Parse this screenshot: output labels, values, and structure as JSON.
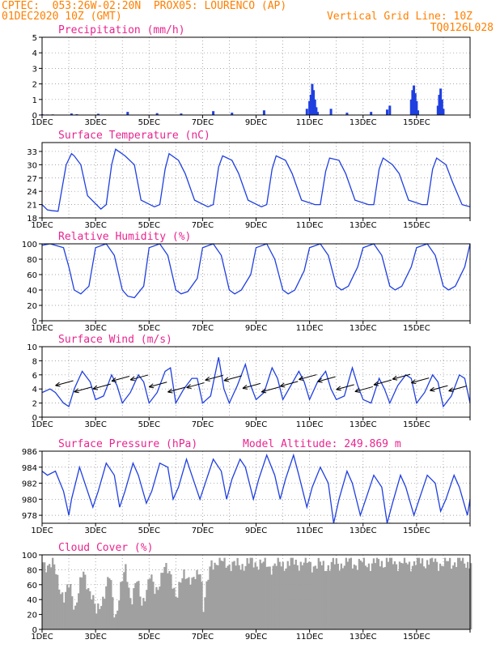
{
  "header": {
    "line1_left": "CPTEC:  053:26W-02:20N  PROX05: LOURENCO (AP)",
    "line2_left": "01DEC2020 10Z (GMT)",
    "line2_right": "Vertical Grid Line: 10Z",
    "line3_right": "TQ0126L028"
  },
  "colors": {
    "header": "#ff7f00",
    "title": "#e8248f",
    "series": "#1f3fe0",
    "cloud": "#a0a0a0"
  },
  "chart_data": [
    {
      "id": "precip",
      "type": "bar",
      "title": "Precipitation (mm/h)",
      "ylim": [
        0,
        5
      ],
      "yticks": [
        0,
        1,
        2,
        3,
        4,
        5
      ],
      "x_ticks": [
        "1DEC",
        "3DEC",
        "5DEC",
        "7DEC",
        "9DEC",
        "11DEC",
        "13DEC",
        "15DEC"
      ],
      "x": [
        0.0,
        0.2,
        0.4,
        1.1,
        1.3,
        2.1,
        3.2,
        4.3,
        5.2,
        6.4,
        7.1,
        8.3,
        9.9,
        10.0,
        10.05,
        10.1,
        10.15,
        10.2,
        10.25,
        10.3,
        10.8,
        11.4,
        12.3,
        12.9,
        13.0,
        13.8,
        13.85,
        13.9,
        13.95,
        14.0,
        14.05,
        14.8,
        14.85,
        14.9,
        14.95,
        15.0
      ],
      "values": [
        0.05,
        0.03,
        0.04,
        0.1,
        0.05,
        0.08,
        0.2,
        0.12,
        0.1,
        0.25,
        0.15,
        0.3,
        0.4,
        0.9,
        1.3,
        2.0,
        1.6,
        1.0,
        0.5,
        0.2,
        0.4,
        0.15,
        0.2,
        0.35,
        0.6,
        1.0,
        1.6,
        1.9,
        1.4,
        0.9,
        0.3,
        0.6,
        1.3,
        1.7,
        1.0,
        0.4
      ]
    },
    {
      "id": "temp",
      "type": "line",
      "title": "Surface Temperature (nC)",
      "ylim": [
        18,
        35
      ],
      "yticks": [
        18,
        21,
        24,
        27,
        30,
        33
      ],
      "x_ticks": [
        "1DEC",
        "3DEC",
        "5DEC",
        "7DEC",
        "9DEC",
        "11DEC",
        "13DEC",
        "15DEC"
      ],
      "x": [
        0,
        0.2,
        0.4,
        0.6,
        0.7,
        0.9,
        1.1,
        1.2,
        1.45,
        1.7,
        2.2,
        2.4,
        2.6,
        2.75,
        3.1,
        3.45,
        3.7,
        4.2,
        4.4,
        4.6,
        4.75,
        5.1,
        5.35,
        5.7,
        6.2,
        6.4,
        6.6,
        6.75,
        7.1,
        7.35,
        7.7,
        8.2,
        8.4,
        8.6,
        8.75,
        9.1,
        9.35,
        9.7,
        10.2,
        10.4,
        10.6,
        10.75,
        11.1,
        11.35,
        11.7,
        12.2,
        12.4,
        12.6,
        12.75,
        13.1,
        13.35,
        13.7,
        14.2,
        14.4,
        14.6,
        14.75,
        15.1,
        15.35,
        15.7,
        16
      ],
      "values": [
        21,
        19.8,
        19.6,
        19.5,
        23,
        30,
        32.5,
        32,
        30,
        23,
        20,
        21,
        30,
        33.5,
        32,
        30,
        22,
        20.5,
        21,
        29,
        32.5,
        31,
        28,
        22,
        20.5,
        21,
        29.5,
        32,
        31,
        28,
        22,
        20.5,
        21,
        29,
        32,
        31,
        28,
        22,
        21,
        21,
        28.5,
        31.5,
        31,
        28,
        22,
        21,
        21,
        29,
        31.5,
        30,
        28,
        22,
        21,
        21,
        29,
        31.5,
        30,
        26,
        21,
        20.5
      ]
    },
    {
      "id": "rh",
      "type": "line",
      "title": "Relative Humidity (%)",
      "ylim": [
        0,
        100
      ],
      "yticks": [
        0,
        20,
        40,
        60,
        80,
        100
      ],
      "x_ticks": [
        "1DEC",
        "3DEC",
        "5DEC",
        "7DEC",
        "9DEC",
        "11DEC",
        "13DEC",
        "15DEC"
      ],
      "x": [
        0,
        0.3,
        0.5,
        0.8,
        1.0,
        1.2,
        1.45,
        1.75,
        2.0,
        2.4,
        2.7,
        3.0,
        3.2,
        3.45,
        3.8,
        4.0,
        4.4,
        4.7,
        5.0,
        5.2,
        5.45,
        5.8,
        6.0,
        6.4,
        6.7,
        7.0,
        7.2,
        7.45,
        7.8,
        8.0,
        8.4,
        8.7,
        9.0,
        9.2,
        9.45,
        9.8,
        10.0,
        10.4,
        10.7,
        11.0,
        11.2,
        11.45,
        11.8,
        12.0,
        12.4,
        12.7,
        13.0,
        13.2,
        13.45,
        13.8,
        14.0,
        14.4,
        14.7,
        15.0,
        15.2,
        15.45,
        15.8,
        16
      ],
      "values": [
        98,
        100,
        98,
        95,
        70,
        40,
        35,
        45,
        95,
        100,
        85,
        40,
        32,
        30,
        45,
        95,
        100,
        85,
        40,
        35,
        38,
        55,
        95,
        100,
        85,
        40,
        35,
        40,
        60,
        95,
        100,
        80,
        40,
        35,
        40,
        65,
        95,
        100,
        85,
        45,
        40,
        45,
        70,
        95,
        100,
        85,
        45,
        40,
        45,
        70,
        95,
        100,
        85,
        45,
        40,
        45,
        70,
        100
      ]
    },
    {
      "id": "wind",
      "type": "line",
      "title": "Surface Wind (m/s)",
      "ylim": [
        0,
        10
      ],
      "yticks": [
        0,
        2,
        4,
        6,
        8,
        10
      ],
      "x_ticks": [
        "1DEC",
        "3DEC",
        "5DEC",
        "7DEC",
        "9DEC",
        "11DEC",
        "13DEC",
        "15DEC"
      ],
      "x": [
        0,
        0.3,
        0.5,
        0.8,
        1.0,
        1.2,
        1.5,
        1.8,
        2.0,
        2.3,
        2.6,
        2.8,
        3.0,
        3.3,
        3.6,
        3.8,
        4.0,
        4.3,
        4.6,
        4.8,
        5.0,
        5.3,
        5.6,
        5.8,
        6.0,
        6.3,
        6.6,
        6.8,
        7.0,
        7.3,
        7.6,
        7.8,
        8.0,
        8.3,
        8.6,
        8.8,
        9.0,
        9.3,
        9.6,
        9.8,
        10.0,
        10.3,
        10.6,
        10.8,
        11.0,
        11.3,
        11.6,
        11.8,
        12.0,
        12.3,
        12.6,
        12.8,
        13.0,
        13.3,
        13.6,
        13.8,
        14.0,
        14.3,
        14.6,
        14.8,
        15.0,
        15.3,
        15.6,
        15.8,
        16
      ],
      "values": [
        3.5,
        4,
        3.5,
        2,
        1.5,
        4,
        6.5,
        5,
        2.5,
        3,
        6,
        4.5,
        2,
        3.5,
        6,
        5,
        2,
        3.5,
        6.5,
        7,
        2,
        4,
        5.5,
        5.5,
        2,
        3,
        8.5,
        4,
        2,
        4.5,
        7.5,
        4.5,
        2.5,
        3.5,
        7,
        5.5,
        2.5,
        4.5,
        6.5,
        5,
        2.5,
        5,
        6.5,
        4,
        2.5,
        3,
        7,
        4.5,
        2.5,
        2,
        5.5,
        4,
        2,
        4.5,
        6,
        5.5,
        2,
        3.5,
        6,
        5,
        1.5,
        3,
        6,
        5.5,
        2
      ]
    },
    {
      "id": "pressure",
      "type": "line",
      "title": "Surface Pressure (hPa)",
      "model_altitude": "Model Altitude: 249.869  m",
      "ylim": [
        977,
        986
      ],
      "yticks": [
        978,
        980,
        982,
        984,
        986
      ],
      "x_ticks": [
        "1DEC",
        "3DEC",
        "5DEC",
        "7DEC",
        "9DEC",
        "11DEC",
        "13DEC",
        "15DEC"
      ],
      "x": [
        0,
        0.2,
        0.5,
        0.8,
        1.0,
        1.1,
        1.4,
        1.6,
        1.9,
        2.1,
        2.4,
        2.7,
        2.9,
        3.1,
        3.4,
        3.6,
        3.9,
        4.1,
        4.4,
        4.7,
        4.9,
        5.1,
        5.4,
        5.6,
        5.9,
        6.1,
        6.4,
        6.7,
        6.9,
        7.1,
        7.4,
        7.6,
        7.9,
        8.1,
        8.4,
        8.7,
        8.9,
        9.1,
        9.4,
        9.6,
        9.9,
        10.1,
        10.4,
        10.7,
        10.9,
        11.1,
        11.4,
        11.6,
        11.9,
        12.1,
        12.4,
        12.7,
        12.9,
        13.1,
        13.4,
        13.6,
        13.9,
        14.1,
        14.4,
        14.7,
        14.9,
        15.1,
        15.4,
        15.6,
        15.9,
        16
      ],
      "values": [
        983.5,
        983,
        983.5,
        981,
        978,
        980,
        984,
        982,
        979,
        981,
        984.5,
        983,
        979,
        981,
        984.5,
        983,
        979.5,
        981,
        984.5,
        984,
        980,
        981.5,
        985,
        983,
        980,
        982,
        985,
        983.5,
        980,
        982.5,
        985,
        984,
        980,
        982.5,
        985.5,
        983,
        980,
        982.5,
        985.5,
        983,
        979,
        981.5,
        984,
        982,
        977,
        980,
        983.5,
        982,
        978,
        980,
        983,
        981.5,
        977,
        979.5,
        983,
        981.5,
        978,
        980,
        983,
        982,
        978.5,
        980,
        983,
        981.5,
        978,
        980
      ]
    },
    {
      "id": "cloud",
      "type": "area",
      "title": "Cloud Cover (%)",
      "ylim": [
        0,
        100
      ],
      "yticks": [
        0,
        20,
        40,
        60,
        80,
        100
      ],
      "x_ticks": [
        "1DEC",
        "3DEC",
        "5DEC",
        "7DEC",
        "9DEC",
        "11DEC",
        "13DEC",
        "15DEC"
      ],
      "x": [
        0,
        0.4,
        0.8,
        1.0,
        1.2,
        1.5,
        1.8,
        2.0,
        2.2,
        2.5,
        2.7,
        2.9,
        3.1,
        3.3,
        3.5,
        3.7,
        4.0,
        4.2,
        4.5,
        4.8,
        5.0,
        5.3,
        5.6,
        5.9,
        6.0,
        6.3,
        6.6,
        6.7,
        6.9,
        7.2,
        7.5,
        8.0,
        8.5,
        9.0,
        9.5,
        10.0,
        10.5,
        11.0,
        11.5,
        12.0,
        12.5,
        13.0,
        13.5,
        14.0,
        14.5,
        15.0,
        15.5,
        16
      ],
      "values": [
        90,
        85,
        40,
        60,
        30,
        75,
        50,
        20,
        40,
        70,
        15,
        55,
        80,
        40,
        65,
        35,
        70,
        50,
        80,
        75,
        40,
        80,
        60,
        85,
        30,
        90,
        92,
        88,
        90,
        85,
        88,
        90,
        85,
        88,
        90,
        88,
        85,
        88,
        90,
        88,
        90,
        92,
        88,
        90,
        92,
        88,
        92,
        90
      ]
    }
  ]
}
